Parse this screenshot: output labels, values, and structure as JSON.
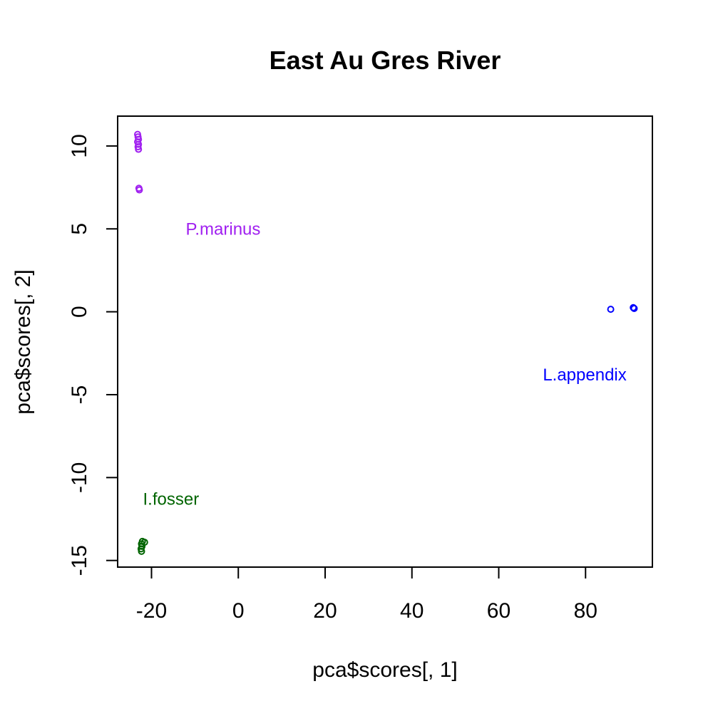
{
  "chart_data": {
    "type": "scatter",
    "title": "East Au Gres River",
    "xlabel": "pca$scores[, 1]",
    "ylabel": "pca$scores[, 2]",
    "xlim": [
      -27.8,
      95.4
    ],
    "ylim": [
      -15.4,
      11.8
    ],
    "x_ticks": [
      -20,
      0,
      20,
      40,
      60,
      80
    ],
    "x_tick_labels": [
      "-20",
      "0",
      "20",
      "40",
      "60",
      "80"
    ],
    "y_ticks": [
      -15,
      -10,
      -5,
      0,
      5,
      10
    ],
    "y_tick_labels": [
      "-15",
      "-10",
      "-5",
      "0",
      "5",
      "10"
    ],
    "grid": false,
    "legend": "none",
    "series": [
      {
        "name": "P.marinus",
        "color": "#a020f0",
        "points": [
          {
            "x": -23.2,
            "y": 10.7
          },
          {
            "x": -23.1,
            "y": 10.55
          },
          {
            "x": -23.0,
            "y": 10.4
          },
          {
            "x": -23.2,
            "y": 10.25
          },
          {
            "x": -23.0,
            "y": 10.1
          },
          {
            "x": -23.1,
            "y": 9.95
          },
          {
            "x": -23.0,
            "y": 9.8
          },
          {
            "x": -22.9,
            "y": 7.45
          },
          {
            "x": -22.8,
            "y": 7.35
          }
        ],
        "label_at": {
          "x": -3.5,
          "y": 5.0
        }
      },
      {
        "name": "L.appendix",
        "color": "#0000ff",
        "points": [
          {
            "x": 85.8,
            "y": 0.15
          },
          {
            "x": 91.0,
            "y": 0.25
          },
          {
            "x": 91.2,
            "y": 0.2
          }
        ],
        "label_at": {
          "x": 79.8,
          "y": -3.8
        }
      },
      {
        "name": "I.fosser",
        "color": "#006400",
        "points": [
          {
            "x": -22.1,
            "y": -13.85
          },
          {
            "x": -21.6,
            "y": -13.9
          },
          {
            "x": -22.3,
            "y": -14.0
          },
          {
            "x": -22.2,
            "y": -14.15
          },
          {
            "x": -22.4,
            "y": -14.3
          },
          {
            "x": -22.3,
            "y": -14.45
          }
        ],
        "label_at": {
          "x": -15.5,
          "y": -11.3
        }
      }
    ]
  }
}
